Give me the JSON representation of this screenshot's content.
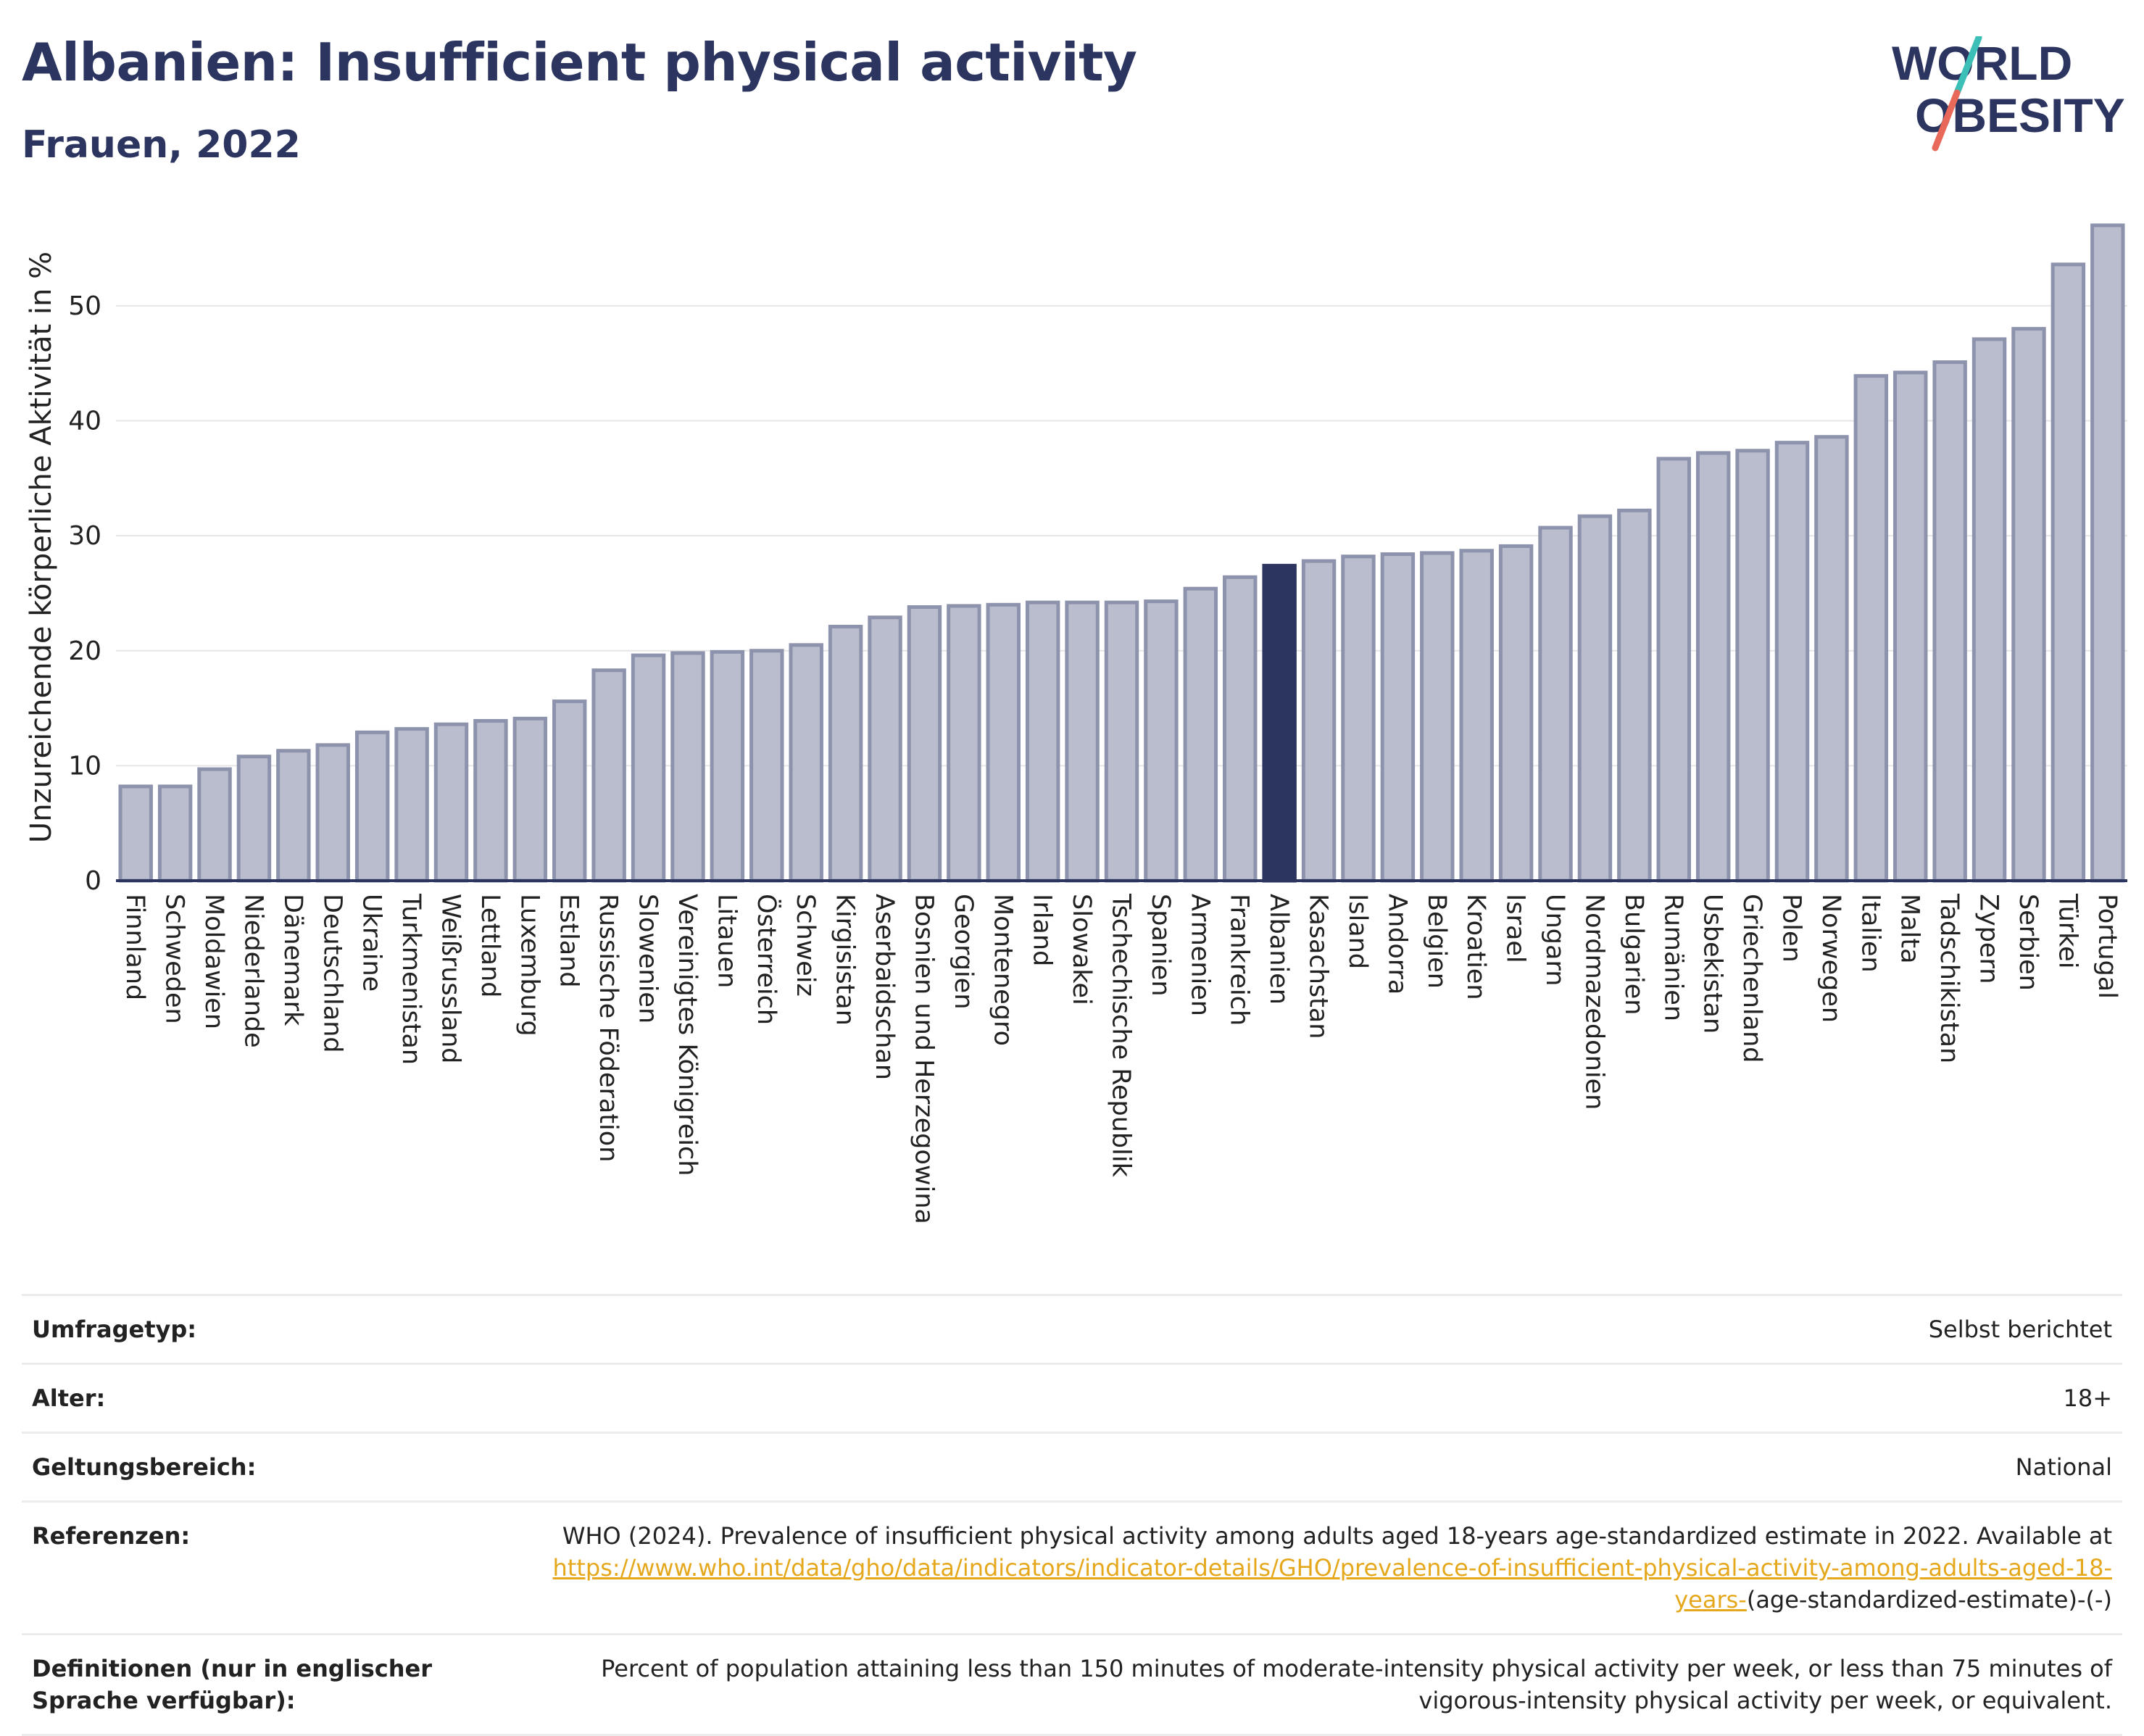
{
  "header": {
    "title": "Albanien: Insufficient physical activity",
    "subtitle": "Frauen, 2022",
    "logo_line1": "WORLD",
    "logo_line2": "OBESITY"
  },
  "colors": {
    "bar": "#b9bdcd",
    "bar_border": "#8d93ac",
    "highlight": "#2c3560",
    "text": "#222222",
    "grid": "#e6e6e6",
    "link": "#e5a81c",
    "logo_teal": "#3bbfb6",
    "logo_coral": "#e8695a"
  },
  "chart_data": {
    "type": "bar",
    "title": "Albanien: Insufficient physical activity",
    "subtitle": "Frauen, 2022",
    "ylabel": "Unzureichende körperliche Aktivität in %",
    "xlabel": "",
    "ylim": [
      0,
      58
    ],
    "yticks": [
      0,
      10,
      20,
      30,
      40,
      50
    ],
    "grid": true,
    "highlight": "Albanien",
    "categories": [
      "Finnland",
      "Schweden",
      "Moldawien",
      "Niederlande",
      "Dänemark",
      "Deutschland",
      "Ukraine",
      "Turkmenistan",
      "Weißrussland",
      "Lettland",
      "Luxemburg",
      "Estland",
      "Russische Föderation",
      "Slowenien",
      "Vereinigtes Königreich",
      "Litauen",
      "Österreich",
      "Schweiz",
      "Kirgisistan",
      "Aserbaidschan",
      "Bosnien und Herzegowina",
      "Georgien",
      "Montenegro",
      "Irland",
      "Slowakei",
      "Tschechische Republik",
      "Spanien",
      "Armenien",
      "Frankreich",
      "Albanien",
      "Kasachstan",
      "Island",
      "Andorra",
      "Belgien",
      "Kroatien",
      "Israel",
      "Ungarn",
      "Nordmazedonien",
      "Bulgarien",
      "Rumänien",
      "Usbekistan",
      "Griechenland",
      "Polen",
      "Norwegen",
      "Italien",
      "Malta",
      "Tadschikistan",
      "Zypern",
      "Serbien",
      "Türkei",
      "Portugal"
    ],
    "values": [
      8.2,
      8.2,
      9.7,
      10.8,
      11.3,
      11.8,
      12.9,
      13.2,
      13.6,
      13.9,
      14.1,
      15.6,
      18.3,
      19.6,
      19.8,
      19.9,
      20.0,
      20.5,
      22.1,
      22.9,
      23.8,
      23.9,
      24.0,
      24.2,
      24.2,
      24.2,
      24.3,
      25.4,
      26.4,
      27.4,
      27.8,
      28.2,
      28.4,
      28.5,
      28.7,
      29.1,
      30.7,
      31.7,
      32.2,
      36.7,
      37.2,
      37.4,
      38.1,
      38.6,
      43.9,
      44.2,
      45.1,
      47.1,
      48.0,
      53.6,
      57.0
    ]
  },
  "meta": [
    {
      "label": "Umfragetyp:",
      "value": "Selbst berichtet"
    },
    {
      "label": "Alter:",
      "value": "18+"
    },
    {
      "label": "Geltungsbereich:",
      "value": "National"
    }
  ],
  "references": {
    "label": "Referenzen:",
    "text": "WHO (2024). Prevalence of insufficient physical activity among adults aged 18-years age-standardized estimate in 2022. Available at",
    "link": "https://www.who.int/data/gho/data/indicators/indicator-details/GHO/prevalence-of-insufficient-physical-activity-among-adults-aged-18-years-",
    "suffix": "(age-standardized-estimate)-(-)"
  },
  "definitions": {
    "label": "Definitionen (nur in englischer Sprache verfügbar):",
    "text": "Percent of population attaining less than 150 minutes of moderate-intensity physical activity per week, or less than 75 minutes of vigorous-intensity physical activity per week, or equivalent."
  }
}
